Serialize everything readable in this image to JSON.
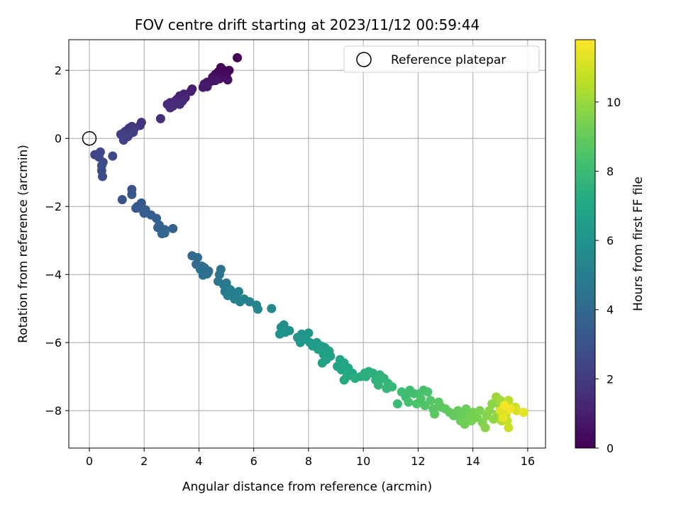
{
  "chart_data": {
    "type": "scatter",
    "title": "FOV centre drift starting at 2023/11/12 00:59:44",
    "xlabel": "Angular distance from reference (arcmin)",
    "ylabel": "Rotation from reference (arcmin)",
    "xlim": [
      -0.75,
      16.65
    ],
    "ylim": [
      -9.1,
      2.9
    ],
    "xticks": [
      0,
      2,
      4,
      6,
      8,
      10,
      12,
      14,
      16
    ],
    "yticks": [
      -8,
      -6,
      -4,
      -2,
      0,
      2
    ],
    "xtick_labels": [
      "0",
      "2",
      "4",
      "6",
      "8",
      "10",
      "12",
      "14",
      "16"
    ],
    "ytick_labels": [
      "−8",
      "−6",
      "−4",
      "−2",
      "0",
      "2"
    ],
    "grid": true,
    "colormap": "viridis",
    "colorbar": {
      "label": "Hours from first FF file",
      "range": [
        0,
        11.8
      ],
      "ticks": [
        0,
        2,
        4,
        6,
        8,
        10
      ],
      "tick_labels": [
        "0",
        "2",
        "4",
        "6",
        "8",
        "10"
      ]
    },
    "legend": {
      "placement": "top-right",
      "entries": [
        {
          "label": "Reference platepar",
          "marker": "open-circle"
        }
      ]
    },
    "reference_point": {
      "x": 0,
      "y": 0
    },
    "points": [
      {
        "x": 5.4,
        "y": 2.37,
        "t": 0.0
      },
      {
        "x": 4.8,
        "y": 2.08,
        "t": 0.05
      },
      {
        "x": 4.9,
        "y": 2.0,
        "t": 0.1
      },
      {
        "x": 4.95,
        "y": 1.95,
        "t": 0.15
      },
      {
        "x": 5.1,
        "y": 2.0,
        "t": 0.2
      },
      {
        "x": 4.7,
        "y": 1.95,
        "t": 0.25
      },
      {
        "x": 4.6,
        "y": 1.88,
        "t": 0.3
      },
      {
        "x": 5.0,
        "y": 1.85,
        "t": 0.35
      },
      {
        "x": 4.85,
        "y": 1.8,
        "t": 0.4
      },
      {
        "x": 4.75,
        "y": 1.75,
        "t": 0.45
      },
      {
        "x": 4.5,
        "y": 1.8,
        "t": 0.5
      },
      {
        "x": 5.05,
        "y": 1.72,
        "t": 0.55
      },
      {
        "x": 4.3,
        "y": 1.65,
        "t": 0.6
      },
      {
        "x": 4.45,
        "y": 1.68,
        "t": 0.65
      },
      {
        "x": 4.6,
        "y": 1.7,
        "t": 0.7
      },
      {
        "x": 4.2,
        "y": 1.6,
        "t": 0.75
      },
      {
        "x": 4.3,
        "y": 1.52,
        "t": 0.8
      },
      {
        "x": 4.15,
        "y": 1.5,
        "t": 0.85
      },
      {
        "x": 3.75,
        "y": 1.45,
        "t": 0.9
      },
      {
        "x": 3.7,
        "y": 1.38,
        "t": 1.0
      },
      {
        "x": 3.45,
        "y": 1.3,
        "t": 1.05
      },
      {
        "x": 3.3,
        "y": 1.25,
        "t": 1.1
      },
      {
        "x": 3.5,
        "y": 1.2,
        "t": 1.15
      },
      {
        "x": 3.4,
        "y": 1.1,
        "t": 1.2
      },
      {
        "x": 3.2,
        "y": 1.15,
        "t": 1.25
      },
      {
        "x": 3.1,
        "y": 1.08,
        "t": 1.3
      },
      {
        "x": 2.95,
        "y": 1.05,
        "t": 1.35
      },
      {
        "x": 2.85,
        "y": 1.0,
        "t": 1.4
      },
      {
        "x": 3.3,
        "y": 1.0,
        "t": 1.45
      },
      {
        "x": 3.05,
        "y": 0.95,
        "t": 1.5
      },
      {
        "x": 2.95,
        "y": 0.9,
        "t": 1.55
      },
      {
        "x": 2.6,
        "y": 0.58,
        "t": 1.6
      },
      {
        "x": 1.9,
        "y": 0.47,
        "t": 1.7
      },
      {
        "x": 1.85,
        "y": 0.38,
        "t": 1.75
      },
      {
        "x": 1.55,
        "y": 0.35,
        "t": 1.8
      },
      {
        "x": 1.45,
        "y": 0.3,
        "t": 1.85
      },
      {
        "x": 1.65,
        "y": 0.3,
        "t": 1.9
      },
      {
        "x": 1.4,
        "y": 0.25,
        "t": 1.95
      },
      {
        "x": 1.3,
        "y": 0.2,
        "t": 2.0
      },
      {
        "x": 1.5,
        "y": 0.15,
        "t": 2.05
      },
      {
        "x": 1.6,
        "y": 0.18,
        "t": 2.1
      },
      {
        "x": 1.15,
        "y": 0.12,
        "t": 2.15
      },
      {
        "x": 1.25,
        "y": 0.08,
        "t": 2.2
      },
      {
        "x": 1.4,
        "y": 0.05,
        "t": 2.25
      },
      {
        "x": 1.25,
        "y": -0.05,
        "t": 2.3
      },
      {
        "x": 0.4,
        "y": -0.4,
        "t": 2.45
      },
      {
        "x": 0.2,
        "y": -0.48,
        "t": 2.5
      },
      {
        "x": 0.35,
        "y": -0.55,
        "t": 2.55
      },
      {
        "x": 0.85,
        "y": -0.52,
        "t": 2.6
      },
      {
        "x": 0.5,
        "y": -0.7,
        "t": 2.65
      },
      {
        "x": 0.45,
        "y": -0.8,
        "t": 2.7
      },
      {
        "x": 0.45,
        "y": -0.95,
        "t": 2.75
      },
      {
        "x": 0.48,
        "y": -1.12,
        "t": 2.8
      },
      {
        "x": 1.55,
        "y": -1.5,
        "t": 3.05
      },
      {
        "x": 1.55,
        "y": -1.65,
        "t": 3.1
      },
      {
        "x": 1.2,
        "y": -1.8,
        "t": 3.15
      },
      {
        "x": 1.9,
        "y": -1.9,
        "t": 3.2
      },
      {
        "x": 1.75,
        "y": -2.0,
        "t": 3.25
      },
      {
        "x": 1.85,
        "y": -2.05,
        "t": 3.3
      },
      {
        "x": 1.7,
        "y": -2.05,
        "t": 3.35
      },
      {
        "x": 2.05,
        "y": -2.1,
        "t": 3.4
      },
      {
        "x": 2.0,
        "y": -2.2,
        "t": 3.45
      },
      {
        "x": 2.25,
        "y": -2.25,
        "t": 3.5
      },
      {
        "x": 2.45,
        "y": -2.35,
        "t": 3.55
      },
      {
        "x": 2.55,
        "y": -2.55,
        "t": 3.6
      },
      {
        "x": 2.5,
        "y": -2.62,
        "t": 3.65
      },
      {
        "x": 2.75,
        "y": -2.68,
        "t": 3.7
      },
      {
        "x": 3.05,
        "y": -2.65,
        "t": 3.75
      },
      {
        "x": 2.65,
        "y": -2.8,
        "t": 3.8
      },
      {
        "x": 2.75,
        "y": -2.78,
        "t": 3.85
      },
      {
        "x": 3.75,
        "y": -3.45,
        "t": 4.0
      },
      {
        "x": 3.95,
        "y": -3.5,
        "t": 4.05
      },
      {
        "x": 3.9,
        "y": -3.7,
        "t": 4.1
      },
      {
        "x": 4.1,
        "y": -3.75,
        "t": 4.15
      },
      {
        "x": 4.2,
        "y": -3.8,
        "t": 4.2
      },
      {
        "x": 4.05,
        "y": -3.85,
        "t": 4.25
      },
      {
        "x": 4.35,
        "y": -3.9,
        "t": 4.3
      },
      {
        "x": 4.3,
        "y": -3.98,
        "t": 4.35
      },
      {
        "x": 4.15,
        "y": -4.02,
        "t": 4.4
      },
      {
        "x": 4.8,
        "y": -3.85,
        "t": 4.45
      },
      {
        "x": 4.75,
        "y": -4.0,
        "t": 4.5
      },
      {
        "x": 4.7,
        "y": -4.2,
        "t": 4.6
      },
      {
        "x": 4.9,
        "y": -4.3,
        "t": 4.65
      },
      {
        "x": 5.0,
        "y": -4.25,
        "t": 4.7
      },
      {
        "x": 5.05,
        "y": -4.4,
        "t": 4.75
      },
      {
        "x": 4.95,
        "y": -4.5,
        "t": 4.8
      },
      {
        "x": 5.15,
        "y": -4.45,
        "t": 4.85
      },
      {
        "x": 5.2,
        "y": -4.55,
        "t": 4.9
      },
      {
        "x": 5.05,
        "y": -4.62,
        "t": 4.95
      },
      {
        "x": 5.35,
        "y": -4.6,
        "t": 5.0
      },
      {
        "x": 5.45,
        "y": -4.5,
        "t": 5.05
      },
      {
        "x": 5.3,
        "y": -4.72,
        "t": 5.1
      },
      {
        "x": 5.5,
        "y": -4.8,
        "t": 5.15
      },
      {
        "x": 5.65,
        "y": -4.72,
        "t": 5.2
      },
      {
        "x": 5.85,
        "y": -4.8,
        "t": 5.25
      },
      {
        "x": 6.1,
        "y": -4.9,
        "t": 5.35
      },
      {
        "x": 6.15,
        "y": -5.02,
        "t": 5.4
      },
      {
        "x": 6.65,
        "y": -5.0,
        "t": 5.5
      },
      {
        "x": 7.0,
        "y": -5.55,
        "t": 5.7
      },
      {
        "x": 7.1,
        "y": -5.48,
        "t": 5.75
      },
      {
        "x": 7.05,
        "y": -5.62,
        "t": 5.8
      },
      {
        "x": 7.3,
        "y": -5.65,
        "t": 5.85
      },
      {
        "x": 7.15,
        "y": -5.7,
        "t": 5.9
      },
      {
        "x": 6.95,
        "y": -5.75,
        "t": 5.95
      },
      {
        "x": 7.75,
        "y": -5.75,
        "t": 6.05
      },
      {
        "x": 7.6,
        "y": -5.85,
        "t": 6.1
      },
      {
        "x": 8.0,
        "y": -5.72,
        "t": 6.15
      },
      {
        "x": 7.9,
        "y": -5.9,
        "t": 6.2
      },
      {
        "x": 7.7,
        "y": -6.0,
        "t": 6.25
      },
      {
        "x": 8.05,
        "y": -6.0,
        "t": 6.3
      },
      {
        "x": 8.3,
        "y": -6.0,
        "t": 6.35
      },
      {
        "x": 8.15,
        "y": -6.1,
        "t": 6.4
      },
      {
        "x": 8.45,
        "y": -6.1,
        "t": 6.45
      },
      {
        "x": 8.35,
        "y": -6.2,
        "t": 6.5
      },
      {
        "x": 8.6,
        "y": -6.15,
        "t": 6.55
      },
      {
        "x": 8.75,
        "y": -6.25,
        "t": 6.6
      },
      {
        "x": 8.55,
        "y": -6.35,
        "t": 6.65
      },
      {
        "x": 8.8,
        "y": -6.4,
        "t": 6.7
      },
      {
        "x": 8.65,
        "y": -6.5,
        "t": 6.75
      },
      {
        "x": 8.5,
        "y": -6.6,
        "t": 6.8
      },
      {
        "x": 9.15,
        "y": -6.5,
        "t": 6.85
      },
      {
        "x": 9.3,
        "y": -6.6,
        "t": 6.9
      },
      {
        "x": 9.05,
        "y": -6.7,
        "t": 6.95
      },
      {
        "x": 9.2,
        "y": -6.8,
        "t": 7.0
      },
      {
        "x": 9.45,
        "y": -6.75,
        "t": 7.05
      },
      {
        "x": 9.6,
        "y": -6.9,
        "t": 7.1
      },
      {
        "x": 9.4,
        "y": -7.0,
        "t": 7.15
      },
      {
        "x": 9.3,
        "y": -7.1,
        "t": 7.2
      },
      {
        "x": 9.7,
        "y": -7.05,
        "t": 7.25
      },
      {
        "x": 9.9,
        "y": -7.0,
        "t": 7.3
      },
      {
        "x": 10.05,
        "y": -6.9,
        "t": 7.35
      },
      {
        "x": 10.2,
        "y": -6.85,
        "t": 7.4
      },
      {
        "x": 10.1,
        "y": -7.0,
        "t": 7.45
      },
      {
        "x": 10.35,
        "y": -6.9,
        "t": 7.5
      },
      {
        "x": 10.45,
        "y": -7.1,
        "t": 7.55
      },
      {
        "x": 10.6,
        "y": -6.95,
        "t": 7.6
      },
      {
        "x": 10.75,
        "y": -7.05,
        "t": 7.65
      },
      {
        "x": 10.55,
        "y": -7.25,
        "t": 7.7
      },
      {
        "x": 10.9,
        "y": -7.2,
        "t": 7.75
      },
      {
        "x": 10.85,
        "y": -7.35,
        "t": 7.8
      },
      {
        "x": 11.05,
        "y": -7.3,
        "t": 7.85
      },
      {
        "x": 11.25,
        "y": -7.8,
        "t": 8.0
      },
      {
        "x": 11.4,
        "y": -7.45,
        "t": 8.05
      },
      {
        "x": 11.55,
        "y": -7.6,
        "t": 8.1
      },
      {
        "x": 11.7,
        "y": -7.4,
        "t": 8.15
      },
      {
        "x": 11.85,
        "y": -7.5,
        "t": 8.2
      },
      {
        "x": 11.65,
        "y": -7.75,
        "t": 8.25
      },
      {
        "x": 12.05,
        "y": -7.5,
        "t": 8.3
      },
      {
        "x": 12.2,
        "y": -7.4,
        "t": 8.35
      },
      {
        "x": 12.35,
        "y": -7.45,
        "t": 8.4
      },
      {
        "x": 12.1,
        "y": -7.65,
        "t": 8.45
      },
      {
        "x": 11.95,
        "y": -7.8,
        "t": 8.5
      },
      {
        "x": 12.25,
        "y": -7.85,
        "t": 8.55
      },
      {
        "x": 12.45,
        "y": -7.7,
        "t": 8.6
      },
      {
        "x": 12.55,
        "y": -7.95,
        "t": 8.65
      },
      {
        "x": 12.75,
        "y": -7.75,
        "t": 8.7
      },
      {
        "x": 12.85,
        "y": -7.9,
        "t": 8.75
      },
      {
        "x": 12.6,
        "y": -8.1,
        "t": 8.8
      },
      {
        "x": 13.0,
        "y": -7.95,
        "t": 8.85
      },
      {
        "x": 13.15,
        "y": -8.05,
        "t": 8.9
      },
      {
        "x": 13.3,
        "y": -8.15,
        "t": 8.95
      },
      {
        "x": 13.45,
        "y": -8.0,
        "t": 9.0
      },
      {
        "x": 13.6,
        "y": -8.1,
        "t": 9.05
      },
      {
        "x": 13.75,
        "y": -7.95,
        "t": 9.1
      },
      {
        "x": 13.55,
        "y": -8.3,
        "t": 9.15
      },
      {
        "x": 13.7,
        "y": -8.4,
        "t": 9.2
      },
      {
        "x": 13.85,
        "y": -8.2,
        "t": 9.25
      },
      {
        "x": 14.0,
        "y": -8.05,
        "t": 9.3
      },
      {
        "x": 13.95,
        "y": -8.3,
        "t": 9.35
      },
      {
        "x": 14.15,
        "y": -8.2,
        "t": 9.4
      },
      {
        "x": 14.25,
        "y": -8.0,
        "t": 9.45
      },
      {
        "x": 14.35,
        "y": -8.35,
        "t": 9.5
      },
      {
        "x": 14.5,
        "y": -8.15,
        "t": 9.6
      },
      {
        "x": 14.45,
        "y": -8.5,
        "t": 9.65
      },
      {
        "x": 14.6,
        "y": -8.0,
        "t": 9.7
      },
      {
        "x": 14.7,
        "y": -7.8,
        "t": 9.75
      },
      {
        "x": 14.75,
        "y": -8.25,
        "t": 9.8
      },
      {
        "x": 14.9,
        "y": -8.1,
        "t": 9.85
      },
      {
        "x": 15.0,
        "y": -7.9,
        "t": 9.9
      },
      {
        "x": 14.85,
        "y": -7.6,
        "t": 10.0
      },
      {
        "x": 15.0,
        "y": -7.7,
        "t": 10.1
      },
      {
        "x": 15.1,
        "y": -8.0,
        "t": 10.2
      },
      {
        "x": 15.2,
        "y": -8.1,
        "t": 10.3
      },
      {
        "x": 15.05,
        "y": -8.3,
        "t": 10.4
      },
      {
        "x": 15.3,
        "y": -7.7,
        "t": 10.5
      },
      {
        "x": 15.4,
        "y": -7.9,
        "t": 10.6
      },
      {
        "x": 15.25,
        "y": -8.3,
        "t": 10.7
      },
      {
        "x": 15.3,
        "y": -8.5,
        "t": 10.8
      },
      {
        "x": 15.55,
        "y": -7.9,
        "t": 10.9
      },
      {
        "x": 15.2,
        "y": -8.05,
        "t": 11.0
      },
      {
        "x": 15.6,
        "y": -8.0,
        "t": 11.1
      },
      {
        "x": 15.0,
        "y": -8.0,
        "t": 11.2
      },
      {
        "x": 15.85,
        "y": -8.05,
        "t": 11.3
      },
      {
        "x": 15.1,
        "y": -8.2,
        "t": 11.4
      },
      {
        "x": 15.35,
        "y": -7.95,
        "t": 11.5
      },
      {
        "x": 15.15,
        "y": -7.85,
        "t": 11.6
      }
    ]
  }
}
